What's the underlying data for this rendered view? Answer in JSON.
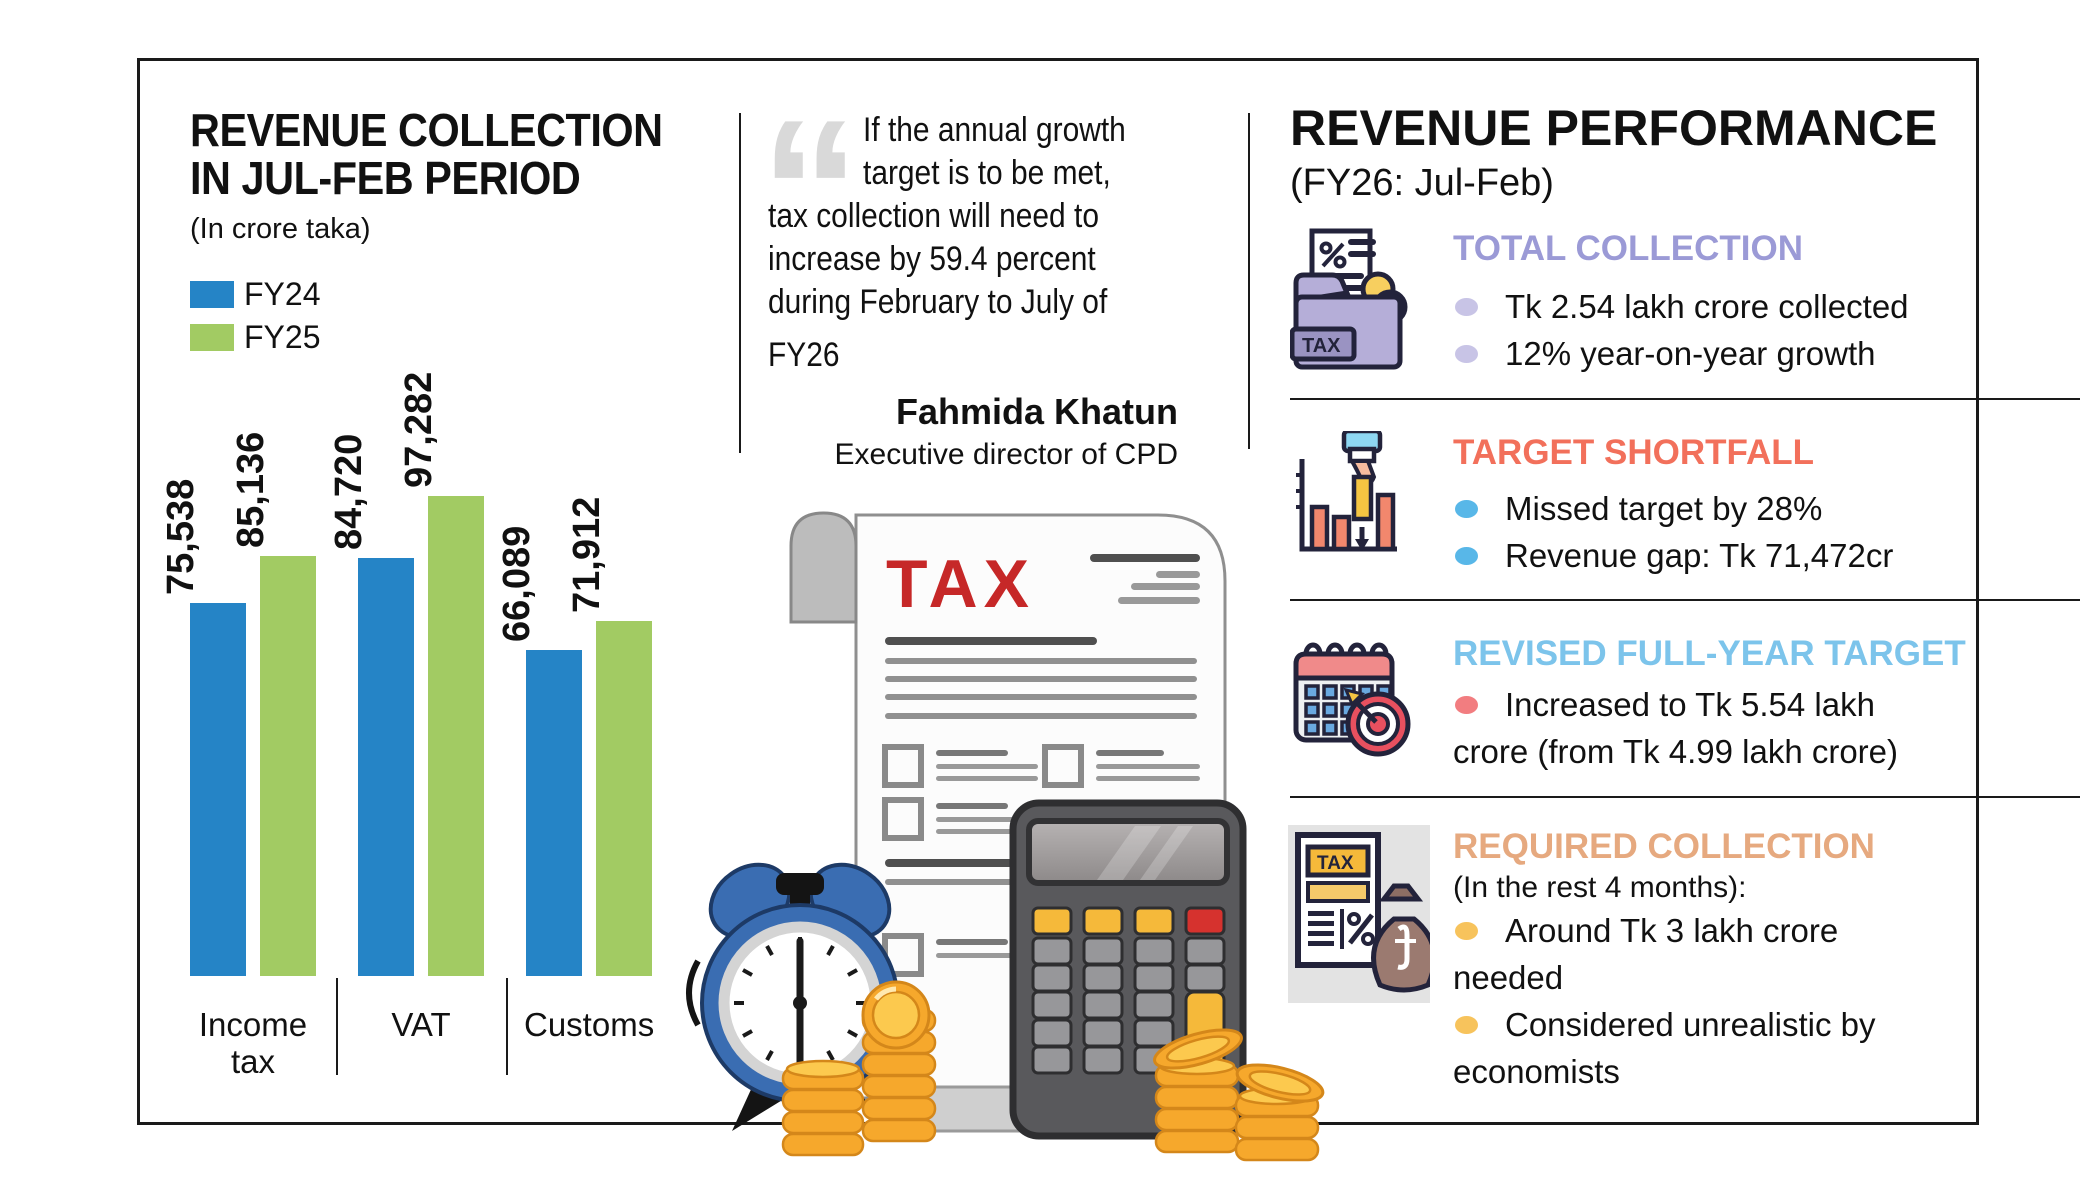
{
  "chart": {
    "title_line1": "REVENUE COLLECTION",
    "title_line2": "IN JUL-FEB PERIOD",
    "subtitle": "(In crore taka)",
    "legend": [
      {
        "label": "FY24",
        "color": "#2584c6"
      },
      {
        "label": "FY25",
        "color": "#a2cb63"
      }
    ],
    "chart_data": {
      "type": "bar",
      "categories": [
        "Income tax",
        "VAT",
        "Customs"
      ],
      "series": [
        {
          "name": "FY24",
          "color": "#2584c6",
          "values": [
            75538,
            84720,
            66089
          ]
        },
        {
          "name": "FY25",
          "color": "#a2cb63",
          "values": [
            85136,
            97282,
            71912
          ]
        }
      ],
      "title": "REVENUE COLLECTION IN JUL-FEB PERIOD",
      "unit": "crore taka",
      "ylim": [
        0,
        100000
      ],
      "grid": false,
      "legend_position": "top-left",
      "value_labels": true
    }
  },
  "quote": {
    "lines": [
      "If the annual growth",
      "target is to be met,",
      "tax collection will need to",
      "increase by 59.4 percent",
      "during February to July of",
      "FY26"
    ],
    "author": "Fahmida Khatun",
    "author_title": "Executive director of CPD"
  },
  "panel": {
    "title": "REVENUE PERFORMANCE",
    "subtitle": "(FY26: Jul-Feb)",
    "sections": [
      {
        "title": "TOTAL COLLECTION",
        "title_color": "#9b9ad6",
        "bullet_color": "#c8c4e6",
        "icon_label": "TAX",
        "bullets": [
          [
            "Tk 2.54 lakh crore collected"
          ],
          [
            "12% year-on-year growth"
          ]
        ]
      },
      {
        "title": "TARGET SHORTFALL",
        "title_color": "#f2705b",
        "bullet_color": "#58b7e8",
        "bullets": [
          [
            "Missed target by 28%"
          ],
          [
            "Revenue gap: Tk 71,472cr"
          ]
        ]
      },
      {
        "title": "REVISED FULL-YEAR TARGET",
        "title_color": "#7cc4eb",
        "bullet_color": "#f27d80",
        "bullets": [
          [
            "Increased to Tk 5.54 lakh",
            "crore (from Tk 4.99 lakh crore)"
          ]
        ]
      },
      {
        "title": "REQUIRED COLLECTION",
        "subtitle": "(In the rest 4 months):",
        "title_color": "#e6a97f",
        "bullet_color": "#f7c35c",
        "icon_label": "TAX",
        "bullets": [
          [
            "Around Tk 3 lakh crore",
            "needed"
          ],
          [
            "Considered unrealistic by",
            "economists"
          ]
        ]
      }
    ]
  },
  "illustration": {
    "tax_label": "TAX",
    "tax_red": "#c62828"
  }
}
